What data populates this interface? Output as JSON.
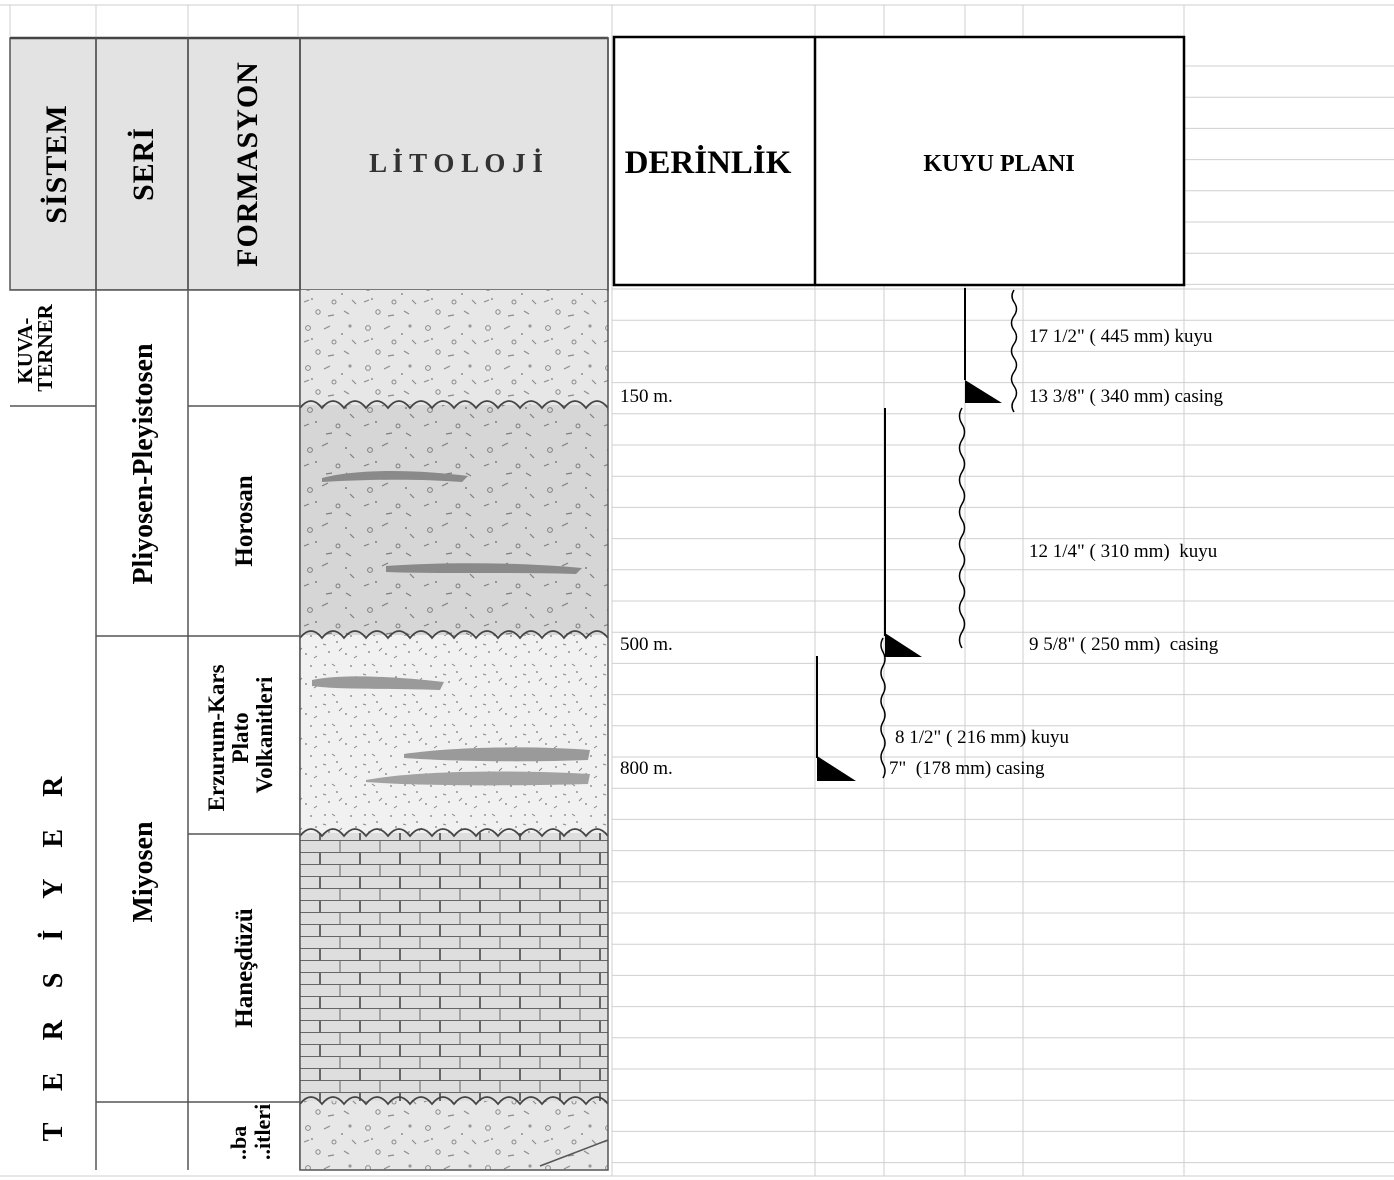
{
  "headers": {
    "sistem": "SİSTEM",
    "seri": "SERİ",
    "formasyon": "FORMASYON",
    "litoloji": "L İ T O L O J İ",
    "derinlik": "DERİNLİK",
    "kuyu_plani": "KUYU PLANI"
  },
  "sistem_units": [
    {
      "lines": [
        "KUVA-",
        "TERNER"
      ]
    },
    {
      "text": "T  E  R  S  İ  Y  E  R"
    }
  ],
  "seri_units": [
    "Pliyosen-Pleyistosen",
    "Miyosen"
  ],
  "formasyon_units": [
    {
      "lines": []
    },
    {
      "lines": [
        "Horosan"
      ]
    },
    {
      "lines": [
        "Erzurum-Kars",
        "Plato",
        "Volkanitleri"
      ]
    },
    {
      "lines": [
        "Haneşdüzü"
      ]
    },
    {
      "lines": [
        "..ba",
        "..itleri"
      ]
    }
  ],
  "depth_markers": [
    "150 m.",
    "500 m.",
    "800 m."
  ],
  "well_plan": [
    {
      "label": "17 1/2\" ( 445 mm) kuyu"
    },
    {
      "label": "13 3/8\" ( 340 mm) casing"
    },
    {
      "label": "12 1/4\" ( 310 mm)  kuyu"
    },
    {
      "label": "9 5/8\" ( 250 mm)  casing"
    },
    {
      "label": "8 1/2\" ( 216 mm) kuyu"
    },
    {
      "label": "7\"  (178 mm) casing"
    }
  ]
}
